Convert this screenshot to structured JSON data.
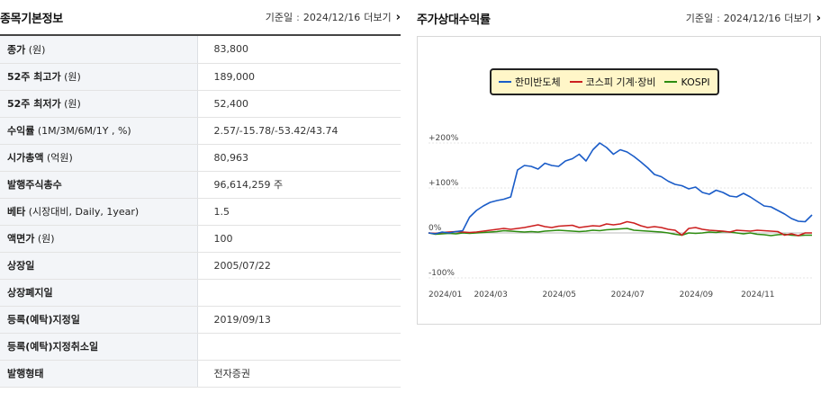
{
  "basic": {
    "title": "종목기본정보",
    "date_label": "기준일",
    "date_value": "2024/12/16",
    "more_label": "더보기",
    "rows": [
      {
        "k": "종가",
        "unit": "(원)",
        "v": "83,800"
      },
      {
        "k": "52주 최고가",
        "unit": "(원)",
        "v": "189,000"
      },
      {
        "k": "52주 최저가",
        "unit": "(원)",
        "v": "52,400"
      },
      {
        "k": "수익률",
        "unit": "(1M/3M/6M/1Y , %)",
        "v": "2.57/-15.78/-53.42/43.74"
      },
      {
        "k": "시가총액",
        "unit": "(억원)",
        "v": "80,963"
      },
      {
        "k": "발행주식총수",
        "unit": "",
        "v": "96,614,259 주"
      },
      {
        "k": "베타",
        "unit": "(시장대비, Daily, 1year)",
        "v": "1.5"
      },
      {
        "k": "액면가",
        "unit": "(원)",
        "v": "100"
      },
      {
        "k": "상장일",
        "unit": "",
        "v": "2005/07/22"
      },
      {
        "k": "상장폐지일",
        "unit": "",
        "v": ""
      },
      {
        "k": "등록(예탁)지정일",
        "unit": "",
        "v": "2019/09/13"
      },
      {
        "k": "등록(예탁)지정취소일",
        "unit": "",
        "v": ""
      },
      {
        "k": "발행형태",
        "unit": "",
        "v": "전자증권"
      }
    ]
  },
  "chart_panel": {
    "title": "주가상대수익률",
    "date_label": "기준일",
    "date_value": "2024/12/16",
    "more_label": "더보기"
  },
  "chart_data": {
    "type": "line",
    "ylim": [
      -100,
      250
    ],
    "yticks": [
      {
        "v": 200,
        "label": "+200%"
      },
      {
        "v": 100,
        "label": "+100%"
      },
      {
        "v": 0,
        "label": "0%"
      },
      {
        "v": -100,
        "label": "-100%"
      }
    ],
    "xticks": [
      {
        "w": 0,
        "label": "2024/01"
      },
      {
        "w": 9,
        "label": "2024/03"
      },
      {
        "w": 19,
        "label": "2024/05"
      },
      {
        "w": 29,
        "label": "2024/07"
      },
      {
        "w": 39,
        "label": "2024/09"
      },
      {
        "w": 48,
        "label": "2024/11"
      }
    ],
    "legend_position": "top-center",
    "series": [
      {
        "name": "한미반도체",
        "color": "#1a5cc8",
        "values": [
          0,
          -2,
          2,
          0,
          3,
          5,
          35,
          50,
          60,
          68,
          72,
          75,
          80,
          140,
          150,
          148,
          142,
          155,
          150,
          148,
          160,
          165,
          175,
          160,
          185,
          200,
          190,
          175,
          185,
          180,
          170,
          158,
          145,
          130,
          125,
          115,
          108,
          105,
          98,
          102,
          90,
          86,
          95,
          90,
          82,
          80,
          88,
          80,
          70,
          60,
          58,
          50,
          42,
          32,
          26,
          25,
          40
        ]
      },
      {
        "name": "코스피 기계·장비",
        "color": "#cc1f1f",
        "values": [
          0,
          -1,
          1,
          2,
          3,
          2,
          1,
          2,
          4,
          6,
          8,
          10,
          8,
          10,
          12,
          15,
          18,
          14,
          12,
          15,
          16,
          17,
          12,
          14,
          16,
          15,
          20,
          18,
          20,
          25,
          22,
          16,
          12,
          14,
          12,
          8,
          6,
          -5,
          10,
          12,
          8,
          6,
          5,
          4,
          2,
          6,
          5,
          4,
          6,
          5,
          4,
          3,
          -5,
          -2,
          -6,
          0,
          0
        ]
      },
      {
        "name": "KOSPI",
        "color": "#2d8c10",
        "values": [
          0,
          -3,
          -2,
          -1,
          -2,
          0,
          -1,
          0,
          1,
          2,
          3,
          5,
          4,
          3,
          2,
          3,
          2,
          4,
          5,
          6,
          5,
          4,
          3,
          4,
          6,
          5,
          7,
          8,
          9,
          10,
          6,
          5,
          4,
          3,
          2,
          0,
          -3,
          -5,
          0,
          -1,
          0,
          2,
          1,
          3,
          2,
          0,
          -2,
          0,
          -3,
          -4,
          -6,
          -4,
          -3,
          -5,
          -6,
          -5,
          -5
        ]
      }
    ]
  }
}
